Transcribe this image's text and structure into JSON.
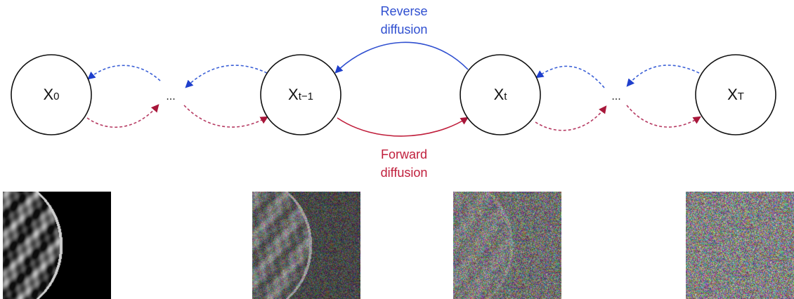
{
  "nodes": [
    {
      "id": "x0",
      "base": "X",
      "sub": "0"
    },
    {
      "id": "xt-1",
      "base": "X",
      "sub": "t−1"
    },
    {
      "id": "xt",
      "base": "X",
      "sub": "t"
    },
    {
      "id": "xT",
      "base": "X",
      "sub": "T"
    }
  ],
  "ellipsis": [
    "...",
    "..."
  ],
  "labels": {
    "reverse": [
      "Reverse",
      "diffusion"
    ],
    "forward": [
      "Forward",
      "diffusion"
    ]
  },
  "colors": {
    "reverse": "#2f4fd0",
    "forward": "#c01f3c",
    "reverse_dashed": "#3a5fd6",
    "forward_dashed": "#b63a62",
    "node_stroke": "#111111"
  },
  "images": [
    {
      "name": "mammogram-x0",
      "noise": 0.0
    },
    {
      "name": "mammogram-xt-1",
      "noise": 0.55
    },
    {
      "name": "mammogram-xt",
      "noise": 0.85
    },
    {
      "name": "noise-xT",
      "noise": 1.0
    }
  ]
}
